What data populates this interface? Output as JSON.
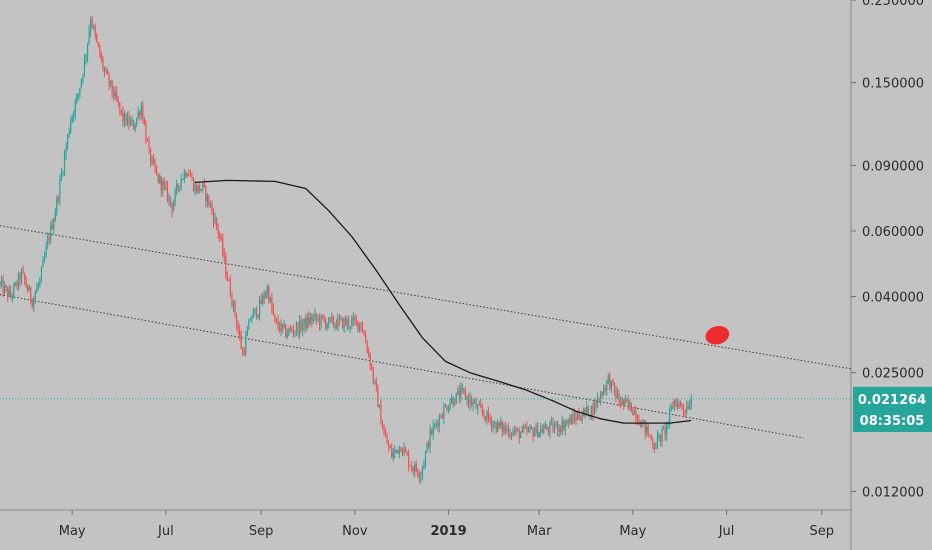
{
  "chart_data": {
    "type": "candlestick",
    "scale": "log",
    "grid": false,
    "colors": {
      "background": "#c3c3c3",
      "up": "#26a69a",
      "down": "#ef5350",
      "moving_average": "#1a1a1a",
      "trendline": "#3a3a3a",
      "price_line": "#26a69a",
      "marker": "#ee2b2b",
      "axis_text": "#2b2b2b"
    },
    "y_ticks": [
      {
        "value": 0.25,
        "label": "0.250000"
      },
      {
        "value": 0.15,
        "label": "0.150000"
      },
      {
        "value": 0.09,
        "label": "0.090000"
      },
      {
        "value": 0.06,
        "label": "0.060000"
      },
      {
        "value": 0.04,
        "label": "0.040000"
      },
      {
        "value": 0.025,
        "label": "0.025000"
      },
      {
        "value": 0.012,
        "label": "0.012000"
      }
    ],
    "ylim": [
      0.0107,
      0.25
    ],
    "x_start": "2018-03-15",
    "x_end": "2019-09-20",
    "x_ticks": [
      {
        "date": "2018-05-01",
        "label": "May",
        "bold": false
      },
      {
        "date": "2018-07-01",
        "label": "Jul",
        "bold": false
      },
      {
        "date": "2018-09-01",
        "label": "Sep",
        "bold": false
      },
      {
        "date": "2018-11-01",
        "label": "Nov",
        "bold": false
      },
      {
        "date": "2019-01-01",
        "label": "2019",
        "bold": true
      },
      {
        "date": "2019-03-01",
        "label": "Mar",
        "bold": false
      },
      {
        "date": "2019-05-01",
        "label": "May",
        "bold": false
      },
      {
        "date": "2019-07-01",
        "label": "Jul",
        "bold": false
      },
      {
        "date": "2019-09-01",
        "label": "Sep",
        "bold": false
      }
    ],
    "price_path": [
      [
        "2018-03-15",
        0.043
      ],
      [
        "2018-03-22",
        0.04
      ],
      [
        "2018-03-29",
        0.046
      ],
      [
        "2018-04-05",
        0.039
      ],
      [
        "2018-04-10",
        0.044
      ],
      [
        "2018-04-15",
        0.056
      ],
      [
        "2018-04-20",
        0.068
      ],
      [
        "2018-04-25",
        0.09
      ],
      [
        "2018-04-30",
        0.12
      ],
      [
        "2018-05-05",
        0.14
      ],
      [
        "2018-05-10",
        0.18
      ],
      [
        "2018-05-13",
        0.225
      ],
      [
        "2018-05-17",
        0.19
      ],
      [
        "2018-05-22",
        0.16
      ],
      [
        "2018-05-28",
        0.14
      ],
      [
        "2018-06-03",
        0.12
      ],
      [
        "2018-06-10",
        0.115
      ],
      [
        "2018-06-15",
        0.13
      ],
      [
        "2018-06-20",
        0.096
      ],
      [
        "2018-06-25",
        0.084
      ],
      [
        "2018-06-30",
        0.078
      ],
      [
        "2018-07-05",
        0.07
      ],
      [
        "2018-07-10",
        0.082
      ],
      [
        "2018-07-15",
        0.088
      ],
      [
        "2018-07-20",
        0.078
      ],
      [
        "2018-07-25",
        0.078
      ],
      [
        "2018-07-30",
        0.07
      ],
      [
        "2018-08-05",
        0.058
      ],
      [
        "2018-08-10",
        0.045
      ],
      [
        "2018-08-15",
        0.036
      ],
      [
        "2018-08-20",
        0.028
      ],
      [
        "2018-08-25",
        0.035
      ],
      [
        "2018-08-30",
        0.037
      ],
      [
        "2018-09-05",
        0.042
      ],
      [
        "2018-09-10",
        0.034
      ],
      [
        "2018-09-17",
        0.032
      ],
      [
        "2018-09-25",
        0.033
      ],
      [
        "2018-10-05",
        0.035
      ],
      [
        "2018-10-15",
        0.034
      ],
      [
        "2018-10-25",
        0.034
      ],
      [
        "2018-11-05",
        0.034
      ],
      [
        "2018-11-10",
        0.028
      ],
      [
        "2018-11-15",
        0.022
      ],
      [
        "2018-11-20",
        0.017
      ],
      [
        "2018-11-25",
        0.015
      ],
      [
        "2018-12-01",
        0.016
      ],
      [
        "2018-12-08",
        0.014
      ],
      [
        "2018-12-14",
        0.0135
      ],
      [
        "2018-12-20",
        0.017
      ],
      [
        "2018-12-26",
        0.019
      ],
      [
        "2019-01-02",
        0.021
      ],
      [
        "2019-01-10",
        0.022
      ],
      [
        "2019-01-20",
        0.02
      ],
      [
        "2019-02-01",
        0.018
      ],
      [
        "2019-02-15",
        0.0172
      ],
      [
        "2019-03-01",
        0.0175
      ],
      [
        "2019-03-15",
        0.018
      ],
      [
        "2019-03-25",
        0.019
      ],
      [
        "2019-04-05",
        0.02
      ],
      [
        "2019-04-15",
        0.024
      ],
      [
        "2019-04-22",
        0.021
      ],
      [
        "2019-05-01",
        0.02
      ],
      [
        "2019-05-08",
        0.018
      ],
      [
        "2019-05-15",
        0.016
      ],
      [
        "2019-05-22",
        0.0175
      ],
      [
        "2019-05-28",
        0.021
      ],
      [
        "2019-06-04",
        0.02
      ],
      [
        "2019-06-08",
        0.02126
      ]
    ],
    "moving_average": [
      [
        "2018-07-20",
        0.081
      ],
      [
        "2018-08-10",
        0.082
      ],
      [
        "2018-09-10",
        0.0815
      ],
      [
        "2018-09-30",
        0.078
      ],
      [
        "2018-10-15",
        0.068
      ],
      [
        "2018-10-30",
        0.058
      ],
      [
        "2018-11-15",
        0.047
      ],
      [
        "2018-11-30",
        0.038
      ],
      [
        "2018-12-15",
        0.031
      ],
      [
        "2018-12-30",
        0.0268
      ],
      [
        "2019-01-15",
        0.025
      ],
      [
        "2019-02-01",
        0.0238
      ],
      [
        "2019-02-20",
        0.0225
      ],
      [
        "2019-03-10",
        0.021
      ],
      [
        "2019-03-25",
        0.0197
      ],
      [
        "2019-04-10",
        0.0188
      ],
      [
        "2019-04-25",
        0.0183
      ],
      [
        "2019-05-10",
        0.0183
      ],
      [
        "2019-05-25",
        0.0183
      ],
      [
        "2019-06-08",
        0.0186
      ]
    ],
    "trendlines": [
      {
        "name": "upper-channel",
        "points": [
          [
            "2018-03-15",
            0.062
          ],
          [
            "2019-09-20",
            0.0256
          ]
        ]
      },
      {
        "name": "lower-channel",
        "points": [
          [
            "2018-03-15",
            0.0405
          ],
          [
            "2019-08-20",
            0.0167
          ]
        ]
      }
    ],
    "price_line_value": 0.021264,
    "marker": {
      "date": "2019-06-25",
      "value": 0.0315
    },
    "last_price_label": "0.021264",
    "countdown_label": "08:35:05"
  }
}
